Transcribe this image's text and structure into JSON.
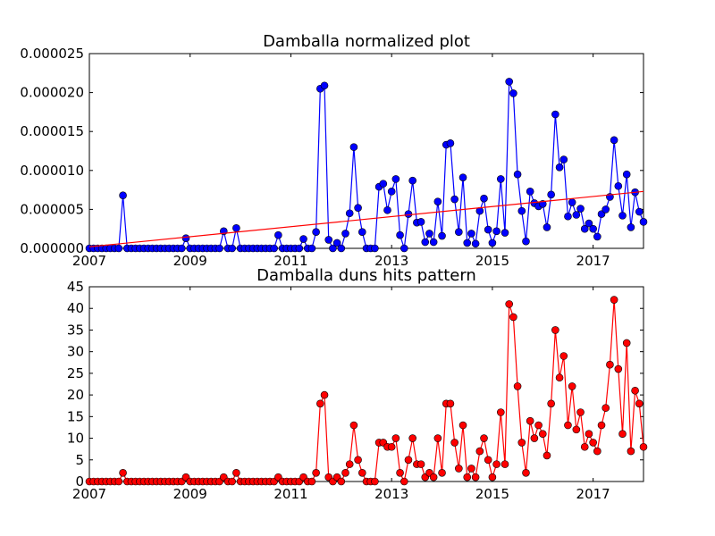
{
  "chart_data": [
    {
      "type": "line",
      "title": "Damballa normalized plot",
      "xlabel": "",
      "ylabel": "",
      "x_tick_labels": [
        "2007",
        "2009",
        "2011",
        "2013",
        "2015",
        "2017"
      ],
      "y_tick_labels": [
        "0.000000",
        "0.000005",
        "0.000010",
        "0.000015",
        "0.000020",
        "0.000025"
      ],
      "xlim": [
        "2007-01",
        "2018-01"
      ],
      "ylim": [
        0,
        2.5e-05
      ],
      "colors": {
        "series": "#0000ff",
        "trend": "#ff0000"
      },
      "series": [
        {
          "marker": "circle",
          "x": [
            "2007-01",
            "2007-02",
            "2007-03",
            "2007-04",
            "2007-05",
            "2007-06",
            "2007-07",
            "2007-08",
            "2007-09",
            "2007-10",
            "2007-11",
            "2007-12",
            "2008-01",
            "2008-02",
            "2008-03",
            "2008-04",
            "2008-05",
            "2008-06",
            "2008-07",
            "2008-08",
            "2008-09",
            "2008-10",
            "2008-11",
            "2008-12",
            "2009-01",
            "2009-02",
            "2009-03",
            "2009-04",
            "2009-05",
            "2009-06",
            "2009-07",
            "2009-08",
            "2009-09",
            "2009-10",
            "2009-11",
            "2009-12",
            "2010-01",
            "2010-02",
            "2010-03",
            "2010-04",
            "2010-05",
            "2010-06",
            "2010-07",
            "2010-08",
            "2010-09",
            "2010-10",
            "2010-11",
            "2010-12",
            "2011-01",
            "2011-02",
            "2011-03",
            "2011-04",
            "2011-05",
            "2011-06",
            "2011-07",
            "2011-08",
            "2011-09",
            "2011-10",
            "2011-11",
            "2011-12",
            "2012-01",
            "2012-02",
            "2012-03",
            "2012-04",
            "2012-05",
            "2012-06",
            "2012-07",
            "2012-08",
            "2012-09",
            "2012-10",
            "2012-11",
            "2012-12",
            "2013-01",
            "2013-02",
            "2013-03",
            "2013-04",
            "2013-05",
            "2013-06",
            "2013-07",
            "2013-08",
            "2013-09",
            "2013-10",
            "2013-11",
            "2013-12",
            "2014-01",
            "2014-02",
            "2014-03",
            "2014-04",
            "2014-05",
            "2014-06",
            "2014-07",
            "2014-08",
            "2014-09",
            "2014-10",
            "2014-11",
            "2014-12",
            "2015-01",
            "2015-02",
            "2015-03",
            "2015-04",
            "2015-05",
            "2015-06",
            "2015-07",
            "2015-08",
            "2015-09",
            "2015-10",
            "2015-11",
            "2015-12",
            "2016-01",
            "2016-02",
            "2016-03",
            "2016-04",
            "2016-05",
            "2016-06",
            "2016-07",
            "2016-08",
            "2016-09",
            "2016-10",
            "2016-11",
            "2016-12",
            "2017-01",
            "2017-02",
            "2017-03",
            "2017-04",
            "2017-05",
            "2017-06",
            "2017-07",
            "2017-08",
            "2017-09",
            "2017-10",
            "2017-11",
            "2017-12",
            "2018-01"
          ],
          "y": [
            0,
            0,
            0,
            0,
            0,
            0,
            0,
            0,
            6.8e-06,
            0,
            0,
            0,
            0,
            0,
            0,
            0,
            0,
            0,
            0,
            0,
            0,
            0,
            0,
            1.3e-06,
            0,
            0,
            0,
            0,
            0,
            0,
            0,
            0,
            2.2e-06,
            0,
            0,
            2.6e-06,
            0,
            0,
            0,
            0,
            0,
            0,
            0,
            0,
            0,
            1.7e-06,
            0,
            0,
            0,
            0,
            0,
            1.2e-06,
            0,
            0,
            2.1e-06,
            2.05e-05,
            2.09e-05,
            1.1e-06,
            0,
            7e-07,
            0,
            1.9e-06,
            4.5e-06,
            1.3e-05,
            5.2e-06,
            2.1e-06,
            0,
            0,
            0,
            7.9e-06,
            8.3e-06,
            4.9e-06,
            7.3e-06,
            8.9e-06,
            1.7e-06,
            0,
            4.4e-06,
            8.7e-06,
            3.3e-06,
            3.4e-06,
            8e-07,
            1.9e-06,
            8e-07,
            6e-06,
            1.6e-06,
            1.33e-05,
            1.35e-05,
            6.3e-06,
            2.1e-06,
            9.1e-06,
            7e-07,
            1.9e-06,
            6e-07,
            4.8e-06,
            6.4e-06,
            2.4e-06,
            7e-07,
            2.2e-06,
            8.9e-06,
            2e-06,
            2.14e-05,
            1.99e-05,
            9.5e-06,
            4.8e-06,
            9e-07,
            7.3e-06,
            5.8e-06,
            5.4e-06,
            5.7e-06,
            2.7e-06,
            6.9e-06,
            1.72e-05,
            1.04e-05,
            1.14e-05,
            4.1e-06,
            5.9e-06,
            4.3e-06,
            5.1e-06,
            2.5e-06,
            3.2e-06,
            2.5e-06,
            1.5e-06,
            4.4e-06,
            5e-06,
            6.6e-06,
            1.39e-05,
            8e-06,
            4.2e-06,
            9.5e-06,
            2.7e-06,
            7.2e-06,
            4.7e-06,
            3.4e-06
          ]
        },
        {
          "marker": "none",
          "x": [
            "2007-01",
            "2018-01"
          ],
          "y": [
            2e-07,
            7.3e-06
          ]
        }
      ]
    },
    {
      "type": "line",
      "title": "Damballa duns hits pattern",
      "xlabel": "",
      "ylabel": "",
      "x_tick_labels": [
        "2007",
        "2009",
        "2011",
        "2013",
        "2015",
        "2017"
      ],
      "y_tick_labels": [
        "0",
        "5",
        "10",
        "15",
        "20",
        "25",
        "30",
        "35",
        "40",
        "45"
      ],
      "xlim": [
        "2007-01",
        "2018-01"
      ],
      "ylim": [
        0,
        45
      ],
      "colors": {
        "series": "#ff0000"
      },
      "series": [
        {
          "marker": "circle",
          "x": [
            "2007-01",
            "2007-02",
            "2007-03",
            "2007-04",
            "2007-05",
            "2007-06",
            "2007-07",
            "2007-08",
            "2007-09",
            "2007-10",
            "2007-11",
            "2007-12",
            "2008-01",
            "2008-02",
            "2008-03",
            "2008-04",
            "2008-05",
            "2008-06",
            "2008-07",
            "2008-08",
            "2008-09",
            "2008-10",
            "2008-11",
            "2008-12",
            "2009-01",
            "2009-02",
            "2009-03",
            "2009-04",
            "2009-05",
            "2009-06",
            "2009-07",
            "2009-08",
            "2009-09",
            "2009-10",
            "2009-11",
            "2009-12",
            "2010-01",
            "2010-02",
            "2010-03",
            "2010-04",
            "2010-05",
            "2010-06",
            "2010-07",
            "2010-08",
            "2010-09",
            "2010-10",
            "2010-11",
            "2010-12",
            "2011-01",
            "2011-02",
            "2011-03",
            "2011-04",
            "2011-05",
            "2011-06",
            "2011-07",
            "2011-08",
            "2011-09",
            "2011-10",
            "2011-11",
            "2011-12",
            "2012-01",
            "2012-02",
            "2012-03",
            "2012-04",
            "2012-05",
            "2012-06",
            "2012-07",
            "2012-08",
            "2012-09",
            "2012-10",
            "2012-11",
            "2012-12",
            "2013-01",
            "2013-02",
            "2013-03",
            "2013-04",
            "2013-05",
            "2013-06",
            "2013-07",
            "2013-08",
            "2013-09",
            "2013-10",
            "2013-11",
            "2013-12",
            "2014-01",
            "2014-02",
            "2014-03",
            "2014-04",
            "2014-05",
            "2014-06",
            "2014-07",
            "2014-08",
            "2014-09",
            "2014-10",
            "2014-11",
            "2014-12",
            "2015-01",
            "2015-02",
            "2015-03",
            "2015-04",
            "2015-05",
            "2015-06",
            "2015-07",
            "2015-08",
            "2015-09",
            "2015-10",
            "2015-11",
            "2015-12",
            "2016-01",
            "2016-02",
            "2016-03",
            "2016-04",
            "2016-05",
            "2016-06",
            "2016-07",
            "2016-08",
            "2016-09",
            "2016-10",
            "2016-11",
            "2016-12",
            "2017-01",
            "2017-02",
            "2017-03",
            "2017-04",
            "2017-05",
            "2017-06",
            "2017-07",
            "2017-08",
            "2017-09",
            "2017-10",
            "2017-11",
            "2017-12",
            "2018-01"
          ],
          "y": [
            0,
            0,
            0,
            0,
            0,
            0,
            0,
            0,
            2,
            0,
            0,
            0,
            0,
            0,
            0,
            0,
            0,
            0,
            0,
            0,
            0,
            0,
            0,
            1,
            0,
            0,
            0,
            0,
            0,
            0,
            0,
            0,
            1,
            0,
            0,
            2,
            0,
            0,
            0,
            0,
            0,
            0,
            0,
            0,
            0,
            1,
            0,
            0,
            0,
            0,
            0,
            1,
            0,
            0,
            2,
            18,
            20,
            1,
            0,
            1,
            0,
            2,
            4,
            13,
            5,
            2,
            0,
            0,
            0,
            9,
            9,
            8,
            8,
            10,
            2,
            0,
            5,
            10,
            4,
            4,
            1,
            2,
            1,
            10,
            2,
            18,
            18,
            9,
            3,
            13,
            1,
            3,
            1,
            7,
            10,
            5,
            1,
            4,
            16,
            4,
            41,
            38,
            22,
            9,
            2,
            14,
            10,
            13,
            11,
            6,
            18,
            35,
            24,
            29,
            13,
            22,
            12,
            16,
            8,
            11,
            9,
            7,
            13,
            17,
            27,
            42,
            26,
            11,
            32,
            7,
            21,
            18,
            8
          ]
        }
      ]
    }
  ]
}
